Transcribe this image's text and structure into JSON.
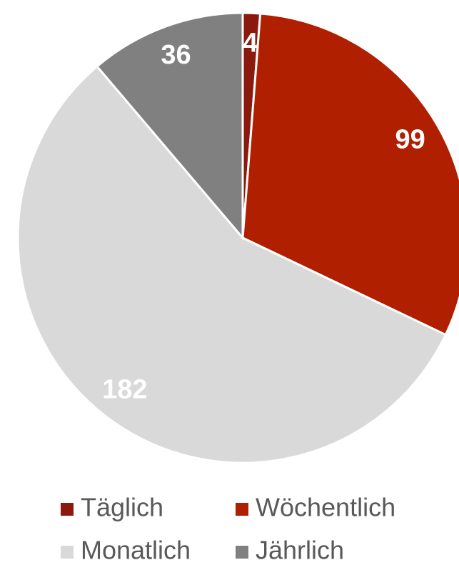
{
  "chart_data": {
    "type": "pie",
    "categories": [
      "Täglich",
      "Wöchentlich",
      "Monatlich",
      "Jährlich"
    ],
    "values": [
      4,
      99,
      182,
      36
    ],
    "colors": [
      "#8b1a0e",
      "#b01f00",
      "#d9d9d9",
      "#808080"
    ],
    "legend": "bottom"
  }
}
